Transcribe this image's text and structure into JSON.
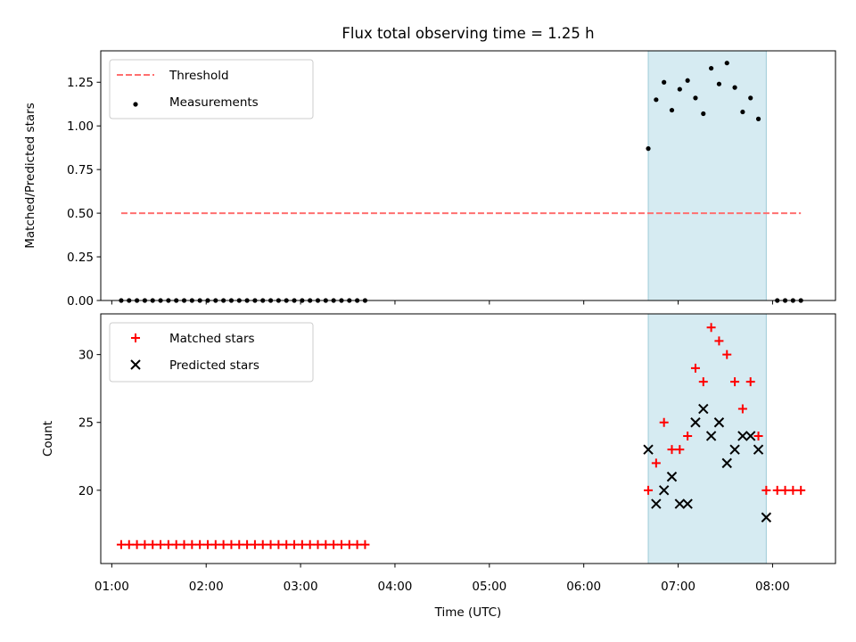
{
  "chart_data": [
    {
      "type": "scatter",
      "title": "Flux total observing time = 1.25 h",
      "ylabel": "Matched/Predicted stars",
      "xlabel": "",
      "x_ticks": [
        "01:00",
        "02:00",
        "03:00",
        "04:00",
        "05:00",
        "06:00",
        "07:00",
        "08:00"
      ],
      "y_ticks": [
        "0.00",
        "0.25",
        "0.50",
        "0.75",
        "1.00",
        "1.25"
      ],
      "xlim": [
        "00:53",
        "08:40"
      ],
      "ylim": [
        0,
        1.43
      ],
      "grid": false,
      "legend_position": "top-left",
      "shaded_region": {
        "x": [
          "06:41",
          "07:56"
        ],
        "color": "#add8e6"
      },
      "series": [
        {
          "name": "Threshold",
          "kind": "dashed-line",
          "color": "#ff6f6f",
          "x": [
            "01:06",
            "08:18"
          ],
          "y": [
            0.5,
            0.5
          ]
        },
        {
          "name": "Measurements",
          "kind": "dots",
          "color": "#000000",
          "x": [
            "01:06",
            "01:11",
            "01:16",
            "01:21",
            "01:26",
            "01:31",
            "01:36",
            "01:41",
            "01:46",
            "01:51",
            "01:56",
            "02:01",
            "02:06",
            "02:11",
            "02:16",
            "02:21",
            "02:26",
            "02:31",
            "02:36",
            "02:41",
            "02:46",
            "02:51",
            "02:56",
            "03:01",
            "03:06",
            "03:11",
            "03:16",
            "03:21",
            "03:26",
            "03:31",
            "03:36",
            "03:41",
            "06:41",
            "06:46",
            "06:51",
            "06:56",
            "07:01",
            "07:06",
            "07:11",
            "07:16",
            "07:21",
            "07:26",
            "07:31",
            "07:36",
            "07:41",
            "07:46",
            "07:51",
            "08:03",
            "08:08",
            "08:13",
            "08:18"
          ],
          "y": [
            0,
            0,
            0,
            0,
            0,
            0,
            0,
            0,
            0,
            0,
            0,
            0,
            0,
            0,
            0,
            0,
            0,
            0,
            0,
            0,
            0,
            0,
            0,
            0,
            0,
            0,
            0,
            0,
            0,
            0,
            0,
            0,
            0.87,
            1.15,
            1.25,
            1.09,
            1.21,
            1.26,
            1.16,
            1.07,
            1.33,
            1.24,
            1.36,
            1.22,
            1.08,
            1.16,
            1.04,
            0,
            0,
            0,
            0
          ]
        }
      ]
    },
    {
      "type": "scatter",
      "title": "",
      "ylabel": "Count",
      "xlabel": "Time (UTC)",
      "x_ticks": [
        "01:00",
        "02:00",
        "03:00",
        "04:00",
        "05:00",
        "06:00",
        "07:00",
        "08:00"
      ],
      "y_ticks": [
        "20",
        "25",
        "30"
      ],
      "xlim": [
        "00:53",
        "08:40"
      ],
      "ylim": [
        14.6,
        33.0
      ],
      "grid": false,
      "legend_position": "top-left",
      "shaded_region": {
        "x": [
          "06:41",
          "07:56"
        ],
        "color": "#add8e6"
      },
      "series": [
        {
          "name": "Matched stars",
          "kind": "plus",
          "color": "#ff0000",
          "x": [
            "01:06",
            "01:11",
            "01:16",
            "01:21",
            "01:26",
            "01:31",
            "01:36",
            "01:41",
            "01:46",
            "01:51",
            "01:56",
            "02:01",
            "02:06",
            "02:11",
            "02:16",
            "02:21",
            "02:26",
            "02:31",
            "02:36",
            "02:41",
            "02:46",
            "02:51",
            "02:56",
            "03:01",
            "03:06",
            "03:11",
            "03:16",
            "03:21",
            "03:26",
            "03:31",
            "03:36",
            "03:41",
            "06:41",
            "06:46",
            "06:51",
            "06:56",
            "07:01",
            "07:06",
            "07:11",
            "07:16",
            "07:21",
            "07:26",
            "07:31",
            "07:36",
            "07:41",
            "07:46",
            "07:51",
            "07:56",
            "08:03",
            "08:08",
            "08:13",
            "08:18"
          ],
          "y": [
            16,
            16,
            16,
            16,
            16,
            16,
            16,
            16,
            16,
            16,
            16,
            16,
            16,
            16,
            16,
            16,
            16,
            16,
            16,
            16,
            16,
            16,
            16,
            16,
            16,
            16,
            16,
            16,
            16,
            16,
            16,
            16,
            20,
            22,
            25,
            23,
            23,
            24,
            29,
            28,
            32,
            31,
            30,
            28,
            26,
            28,
            24,
            20,
            20,
            20,
            20,
            20
          ]
        },
        {
          "name": "Predicted stars",
          "kind": "x",
          "color": "#000000",
          "x": [
            "06:41",
            "06:46",
            "06:51",
            "06:56",
            "07:01",
            "07:06",
            "07:11",
            "07:16",
            "07:21",
            "07:26",
            "07:31",
            "07:36",
            "07:41",
            "07:46",
            "07:51",
            "07:56"
          ],
          "y": [
            23,
            19,
            20,
            21,
            19,
            19,
            25,
            26,
            24,
            25,
            22,
            23,
            24,
            24,
            23,
            18
          ]
        }
      ]
    }
  ]
}
